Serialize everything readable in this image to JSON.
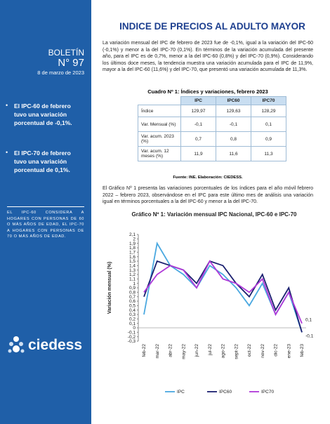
{
  "header": {
    "title": "INDICE DE PRECIOS AL ADULTO MAYOR"
  },
  "sidebar": {
    "label": "BOLETÍN",
    "number": "N° 97",
    "date": "8 de marzo de 2023",
    "bullets": [
      "El IPC-60 de febrero tuvo una variación porcentual de -0,1%.",
      "El IPC-70 de febrero tuvo una variación porcentual de 0,1%."
    ],
    "note": "EL IPC-60 CONSIDERA A HOGARES CON PERSONAS DE 60 O MÁS AÑOS DE EDAD, EL IPC-70 A HOGARES CON PERSONAS DE 70 O MÁS AÑOS DE EDAD.",
    "logo": "ciedess"
  },
  "paragraphs": [
    "La variación mensual del IPC de febrero de 2023 fue de -0,1%, igual a la variación del IPC-60 (-0,1%) y menor a la del IPC-70 (0,1%). En términos de la variación acumulada del presente año, para el IPC es de 0,7%, menor a la del IPC-60 (0,8%) y del IPC-70 (0,9%). Considerando los últimos doce meses, la tendencia muestra una variación acumulada para el IPC de 11,9%, mayor a la del IPC-60 (11,6%) y del IPC-70, que presentó una variación acumulada de 11,3%.",
    "El Gráfico Nº 1 presenta las variaciones porcentuales de los índices para el año móvil febrero 2022 – febrero 2023, observándose en el IPC para este último mes de análisis una variación igual en términos porcentuales a la del IPC-60 y menor a la del IPC-70."
  ],
  "table": {
    "caption": "Cuadro Nº 1: Índices y variaciones, febrero 2023",
    "header": [
      "IPC",
      "IPC60",
      "IPC70"
    ],
    "rows": [
      [
        "Índice",
        "129,97",
        "129,63",
        "128,29"
      ],
      [
        "Var. Mensual (%)",
        "-0,1",
        "-0,1",
        "0,1"
      ],
      [
        "Var. acum. 2023 (%)",
        "0,7",
        "0,8",
        "0,9"
      ],
      [
        "Var. acum. 12 meses (%)",
        "11,9",
        "11,6",
        "11,3"
      ]
    ],
    "source": "Fuente: INE. Elaboración: CIEDESS."
  },
  "chart_data": {
    "type": "line",
    "title": "Gráfico Nº 1: Variación mensual IPC Nacional, IPC-60 e IPC-70",
    "y_label": "Variación mensual (%)",
    "categories": [
      "feb-22",
      "mar-22",
      "abr-22",
      "may-22",
      "jun-22",
      "jul-22",
      "ago-22",
      "sept-22",
      "oct-22",
      "nov-22",
      "dic-22",
      "ene-23",
      "feb-23"
    ],
    "series": [
      {
        "name": "IPC",
        "color": "#4aa8e0",
        "values": [
          0.3,
          1.9,
          1.4,
          1.2,
          0.9,
          1.4,
          1.2,
          0.9,
          0.5,
          1.0,
          0.3,
          0.8,
          -0.1
        ]
      },
      {
        "name": "IPC60",
        "color": "#1b2070",
        "values": [
          0.7,
          1.5,
          1.4,
          1.3,
          1.0,
          1.5,
          1.4,
          1.0,
          0.7,
          1.2,
          0.4,
          0.9,
          -0.1
        ],
        "value_labels": [
          null,
          null,
          null,
          null,
          null,
          null,
          null,
          null,
          null,
          null,
          null,
          null,
          "-0,1"
        ]
      },
      {
        "name": "IPC70",
        "color": "#b038d8",
        "values": [
          0.8,
          1.2,
          1.4,
          1.3,
          0.9,
          1.5,
          1.1,
          1.0,
          0.8,
          1.1,
          0.3,
          0.8,
          0.1
        ],
        "value_labels": [
          null,
          null,
          null,
          null,
          null,
          null,
          null,
          null,
          null,
          null,
          null,
          null,
          "0,1"
        ]
      }
    ],
    "ylim": [
      -0.3,
      2.1
    ],
    "yticks": [
      {
        "value": 2.1,
        "label": "2,1"
      },
      2,
      {
        "value": 1.9,
        "label": "1,9"
      },
      {
        "value": 1.8,
        "label": "1,8"
      },
      {
        "value": 1.7,
        "label": "1,7"
      },
      {
        "value": 1.6,
        "label": "1,6"
      },
      {
        "value": 1.5,
        "label": "1,5"
      },
      {
        "value": 1.4,
        "label": "1,4"
      },
      {
        "value": 1.3,
        "label": "1,3"
      },
      {
        "value": 1.2,
        "label": "1,2"
      },
      {
        "value": 1.1,
        "label": "1,1"
      },
      1,
      {
        "value": 0.9,
        "label": "0,9"
      },
      {
        "value": 0.8,
        "label": "0,8"
      },
      {
        "value": 0.7,
        "label": "0,7"
      },
      {
        "value": 0.6,
        "label": "0,6"
      },
      {
        "value": 0.5,
        "label": "0,5"
      },
      {
        "value": 0.4,
        "label": "0,4"
      },
      {
        "value": 0.3,
        "label": "0,3"
      },
      {
        "value": 0.2,
        "label": "0,2"
      },
      {
        "value": 0.1,
        "label": "0,1"
      },
      0,
      {
        "value": -0.1,
        "label": "-0,1"
      },
      {
        "value": -0.2,
        "label": "-0,2"
      },
      {
        "value": -0.3,
        "label": "-0,3"
      }
    ],
    "legend": "bottom",
    "grid": false
  }
}
